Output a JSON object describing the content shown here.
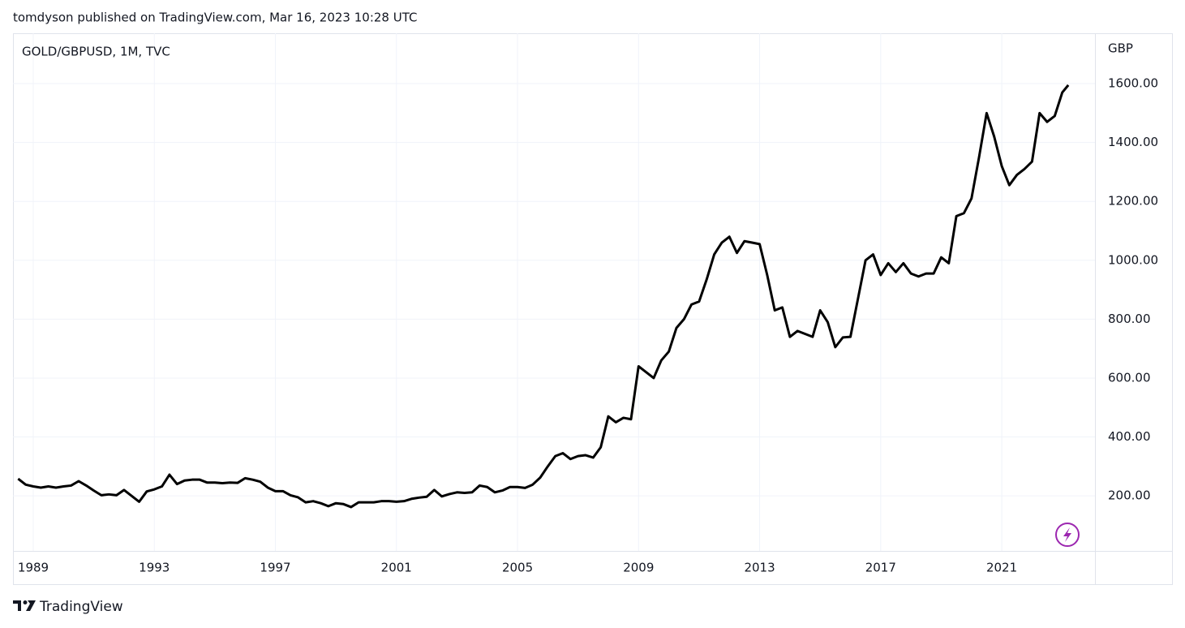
{
  "header": {
    "published": "tomdyson published on TradingView.com, Mar 16, 2023 10:28 UTC"
  },
  "footer": {
    "brand": "TradingView"
  },
  "chart_data": {
    "type": "line",
    "title": "GOLD/GBPUSD, 1M, TVC",
    "y_label": "GBP",
    "color": "#000000",
    "grid": true,
    "xlim": [
      1988.33,
      2024.08
    ],
    "ylim": [
      13,
      1771
    ],
    "xticks": [
      1989,
      1993,
      1997,
      2001,
      2005,
      2009,
      2013,
      2017,
      2021
    ],
    "yticks": [
      {
        "value": 200,
        "label": "200.00"
      },
      {
        "value": 400,
        "label": "400.00"
      },
      {
        "value": 600,
        "label": "600.00"
      },
      {
        "value": 800,
        "label": "800.00"
      },
      {
        "value": 1000,
        "label": "1000.00"
      },
      {
        "value": 1200,
        "label": "1200.00"
      },
      {
        "value": 1400,
        "label": "1400.00"
      },
      {
        "value": 1600,
        "label": "1600.00"
      }
    ],
    "x": [
      1988.5,
      1988.75,
      1989,
      1989.25,
      1989.5,
      1989.75,
      1990,
      1990.25,
      1990.5,
      1990.75,
      1991,
      1991.25,
      1991.5,
      1991.75,
      1992,
      1992.25,
      1992.5,
      1992.75,
      1993,
      1993.25,
      1993.5,
      1993.75,
      1994,
      1994.25,
      1994.5,
      1994.75,
      1995,
      1995.25,
      1995.5,
      1995.75,
      1996,
      1996.25,
      1996.5,
      1996.75,
      1997,
      1997.25,
      1997.5,
      1997.75,
      1998,
      1998.25,
      1998.5,
      1998.75,
      1999,
      1999.25,
      1999.5,
      1999.75,
      2000,
      2000.25,
      2000.5,
      2000.75,
      2001,
      2001.25,
      2001.5,
      2001.75,
      2002,
      2002.25,
      2002.5,
      2002.75,
      2003,
      2003.25,
      2003.5,
      2003.75,
      2004,
      2004.25,
      2004.5,
      2004.75,
      2005,
      2005.25,
      2005.5,
      2005.75,
      2006,
      2006.25,
      2006.5,
      2006.75,
      2007,
      2007.25,
      2007.5,
      2007.75,
      2008,
      2008.25,
      2008.5,
      2008.75,
      2009,
      2009.25,
      2009.5,
      2009.75,
      2010,
      2010.25,
      2010.5,
      2010.75,
      2011,
      2011.25,
      2011.5,
      2011.75,
      2012,
      2012.25,
      2012.5,
      2012.75,
      2013,
      2013.25,
      2013.5,
      2013.75,
      2014,
      2014.25,
      2014.5,
      2014.75,
      2015,
      2015.25,
      2015.5,
      2015.75,
      2016,
      2016.25,
      2016.5,
      2016.75,
      2017,
      2017.25,
      2017.5,
      2017.75,
      2018,
      2018.25,
      2018.5,
      2018.75,
      2019,
      2019.25,
      2019.5,
      2019.75,
      2020,
      2020.25,
      2020.5,
      2020.75,
      2021,
      2021.25,
      2021.5,
      2021.75,
      2022,
      2022.25,
      2022.5,
      2022.75,
      2023,
      2023.2
    ],
    "values": [
      258,
      238,
      232,
      228,
      232,
      228,
      232,
      235,
      250,
      235,
      218,
      202,
      205,
      202,
      220,
      200,
      180,
      215,
      222,
      232,
      272,
      240,
      252,
      255,
      255,
      245,
      245,
      243,
      245,
      244,
      260,
      255,
      248,
      228,
      216,
      216,
      202,
      195,
      178,
      182,
      175,
      165,
      175,
      172,
      162,
      178,
      178,
      178,
      182,
      182,
      180,
      182,
      190,
      194,
      197,
      220,
      198,
      206,
      212,
      210,
      212,
      235,
      230,
      212,
      218,
      230,
      230,
      227,
      238,
      262,
      300,
      335,
      345,
      325,
      335,
      338,
      330,
      365,
      470,
      450,
      465,
      460,
      640,
      620,
      600,
      660,
      690,
      770,
      800,
      850,
      860,
      935,
      1020,
      1060,
      1080,
      1025,
      1065,
      1060,
      1055,
      950,
      830,
      840,
      740,
      760,
      750,
      740,
      830,
      790,
      705,
      738,
      740,
      870,
      1000,
      1020,
      950,
      990,
      960,
      990,
      955,
      945,
      955,
      955,
      1010,
      990,
      1150,
      1160,
      1210,
      1350,
      1500,
      1420,
      1320,
      1255,
      1290,
      1310,
      1335,
      1500,
      1470,
      1490,
      1570,
      1595
    ]
  }
}
